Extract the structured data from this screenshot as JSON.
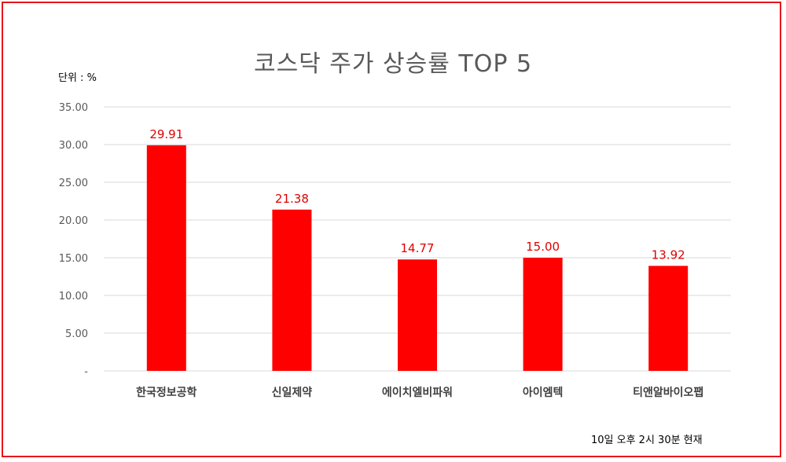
{
  "title": "코스닥 주가 상승률 TOP 5",
  "unit_label": "단위 : %",
  "timestamp": "10일  오후 2시 30분 현재",
  "colors": {
    "bar": "#ff0000",
    "label": "#e00000",
    "frame": "#e8141c",
    "grid": "#d9d9d9"
  },
  "chart_data": {
    "type": "bar",
    "title": "코스닥 주가 상승률 TOP 5",
    "ylabel": "단위 : %",
    "xlabel": "",
    "categories": [
      "한국정보공학",
      "신일제약",
      "에이치엘비파워",
      "아이엠텍",
      "티앤알바이오팹"
    ],
    "values": [
      29.91,
      21.38,
      14.77,
      15.0,
      13.92
    ],
    "value_labels": [
      "29.91",
      "21.38",
      "14.77",
      "15.00",
      "13.92"
    ],
    "ylim": [
      0,
      35
    ],
    "yticks": [
      0,
      5,
      10,
      15,
      20,
      25,
      30,
      35
    ],
    "ytick_labels": [
      "-",
      "5.00",
      "10.00",
      "15.00",
      "20.00",
      "25.00",
      "30.00",
      "35.00"
    ],
    "grid": true,
    "legend": "none"
  }
}
